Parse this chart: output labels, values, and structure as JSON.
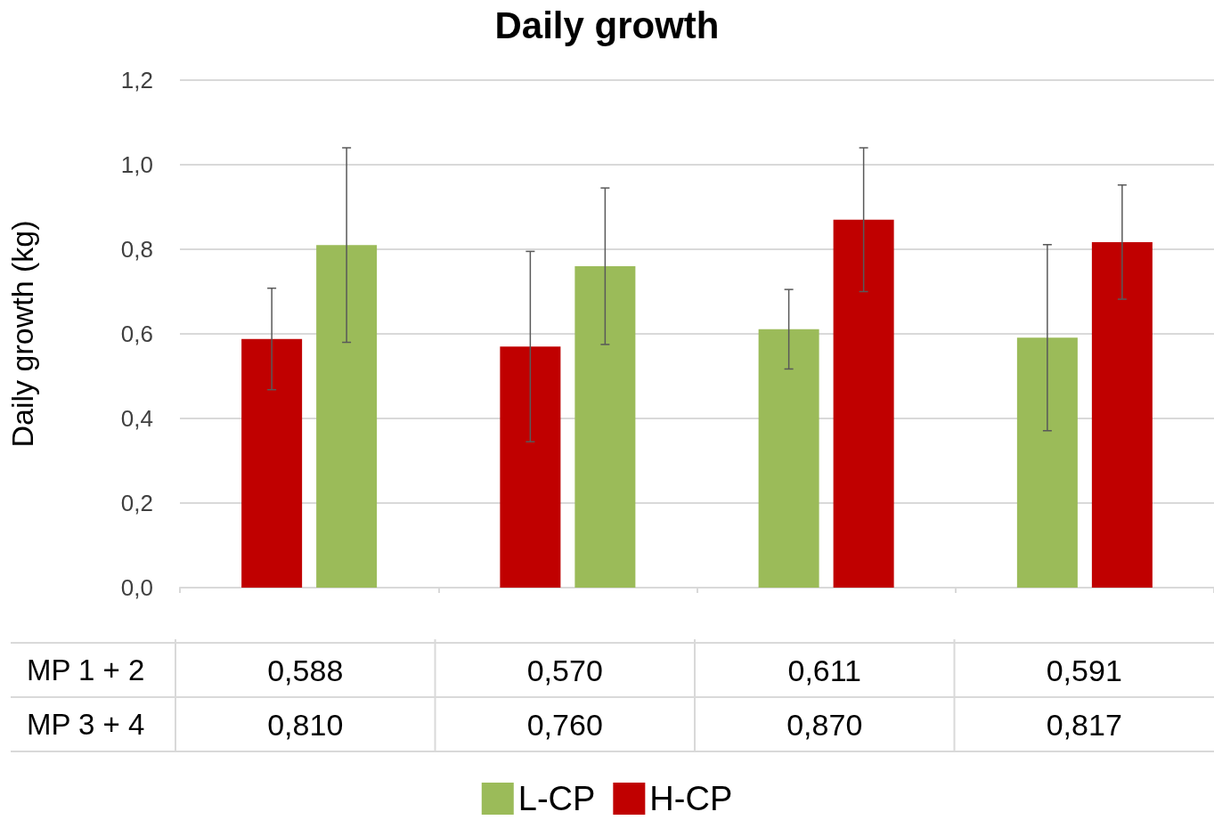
{
  "chart_data": {
    "type": "bar",
    "title": "Daily growth",
    "ylabel": "Daily growth (kg)",
    "categories": [
      null,
      null,
      null,
      null
    ],
    "series": [
      {
        "colors": [
          "#c00000",
          "#c00000",
          "#9bbb59",
          "#9bbb59"
        ],
        "values": [
          0.588,
          0.57,
          0.611,
          0.591
        ],
        "errors": [
          0.12,
          0.225,
          0.094,
          0.22
        ],
        "value_labels": [
          "0,588",
          "0,570",
          "0,611",
          "0,591"
        ]
      },
      {
        "colors": [
          "#9bbb59",
          "#9bbb59",
          "#c00000",
          "#c00000"
        ],
        "values": [
          0.81,
          0.76,
          0.87,
          0.817
        ],
        "errors": [
          0.23,
          0.185,
          0.17,
          0.135
        ],
        "value_labels": [
          "0,810",
          "0,760",
          "0,870",
          "0,817"
        ]
      },
      {
        "name": "L-CP",
        "color": "#9bbb59",
        "values": [
          null,
          null,
          null,
          null
        ]
      },
      {
        "name": "H-CP",
        "color": "#c00000",
        "values": [
          null,
          null,
          null,
          null
        ]
      }
    ],
    "ylim": [
      0,
      1.2
    ],
    "yticks": [
      {
        "value": 0,
        "label": "0,0"
      },
      {
        "value": 0.2,
        "label": "0,2"
      },
      {
        "value": 0.4,
        "label": "0,4"
      },
      {
        "value": 0.6,
        "label": "0,6"
      },
      {
        "value": 0.8,
        "label": "0,8"
      },
      {
        "value": 1.0,
        "label": "1,0"
      },
      {
        "value": 1.2,
        "label": "1,2"
      }
    ],
    "annotations": [
      "MP 1 + 2",
      "MP 3 + 4"
    ],
    "grid": "y",
    "legend": "bottom"
  }
}
